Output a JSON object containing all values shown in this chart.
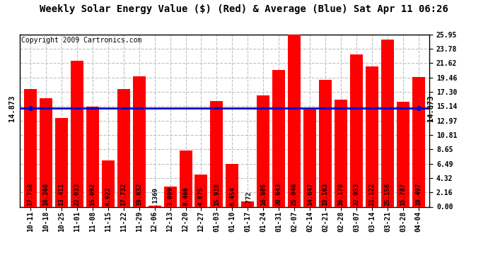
{
  "title": "Weekly Solar Energy Value ($) (Red) & Average (Blue) Sat Apr 11 06:26",
  "copyright": "Copyright 2009 Cartronics.com",
  "average_value": 14.873,
  "average_label": "14.873",
  "bar_color": "#ff0000",
  "average_color": "#0000cc",
  "background_color": "#ffffff",
  "plot_bg_color": "#ffffff",
  "categories": [
    "10-11",
    "10-18",
    "10-25",
    "11-01",
    "11-08",
    "11-15",
    "11-22",
    "11-29",
    "12-06",
    "12-13",
    "12-20",
    "12-27",
    "01-03",
    "01-10",
    "01-17",
    "01-24",
    "01-31",
    "02-07",
    "02-14",
    "02-21",
    "02-28",
    "03-07",
    "03-14",
    "03-21",
    "03-28",
    "04-04"
  ],
  "values": [
    17.758,
    16.368,
    13.411,
    22.033,
    15.092,
    6.922,
    17.732,
    19.632,
    0.1369,
    3.009,
    8.466,
    4.875,
    15.91,
    6.454,
    0.772,
    16.805,
    20.643,
    25.946,
    14.647,
    19.163,
    16.178,
    22.953,
    21.122,
    25.156,
    15.787,
    19.497
  ],
  "bar_labels": [
    "17.758",
    "16.368",
    "13.411",
    "22.033",
    "15.092",
    "6.922",
    "17.732",
    "19.632",
    ".1369",
    "3.009",
    "8.466",
    "4.875",
    "15.910",
    "6.454",
    ".772",
    "16.805",
    "20.643",
    "25.946",
    "14.647",
    "19.163",
    "16.178",
    "22.953",
    "21.122",
    "25.156",
    "15.787",
    "19.497"
  ],
  "ylim": [
    0,
    25.95
  ],
  "yticks": [
    0.0,
    2.16,
    4.32,
    6.49,
    8.65,
    10.81,
    12.97,
    15.14,
    17.3,
    19.46,
    21.62,
    23.78,
    25.95
  ],
  "grid_color": "#c0c0c0",
  "title_fontsize": 10,
  "tick_fontsize": 7,
  "bar_label_fontsize": 6.5,
  "copyright_fontsize": 7
}
